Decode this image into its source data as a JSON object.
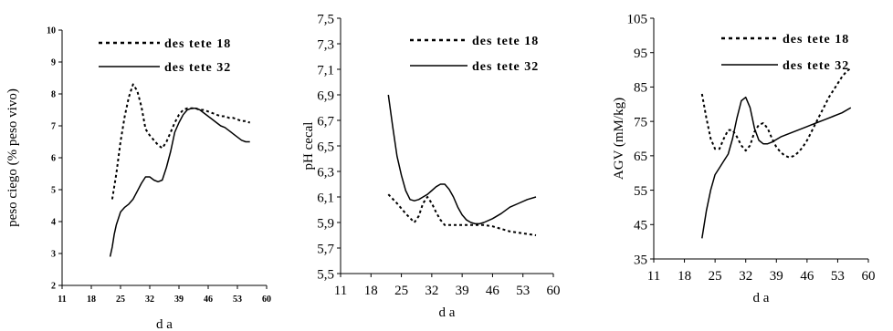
{
  "chart_data": [
    {
      "type": "line",
      "ylabel": "peso ciego (% peso vivo)",
      "xlabel": "d a",
      "xlim": [
        11,
        60
      ],
      "ylim": [
        2,
        10
      ],
      "xticks": [
        "11",
        "18",
        "25",
        "32",
        "39",
        "46",
        "53",
        "60"
      ],
      "yticks": [
        "2",
        "3",
        "4",
        "5",
        "6",
        "7",
        "8",
        "9",
        "10"
      ],
      "legend_position": "top-left",
      "series": [
        {
          "name": "des tete 18",
          "style": "dotted",
          "x": [
            23,
            24,
            25,
            26,
            27,
            28,
            29,
            30,
            31,
            32,
            33,
            34,
            35,
            36,
            37,
            38,
            39,
            40,
            41,
            42,
            43,
            44,
            45,
            46,
            47,
            48,
            49,
            50,
            51,
            52,
            53,
            54,
            55,
            56
          ],
          "y": [
            4.7,
            5.5,
            6.5,
            7.3,
            7.9,
            8.3,
            8.1,
            7.6,
            6.9,
            6.7,
            6.55,
            6.4,
            6.3,
            6.5,
            6.8,
            7.1,
            7.35,
            7.5,
            7.55,
            7.55,
            7.55,
            7.5,
            7.5,
            7.45,
            7.4,
            7.35,
            7.3,
            7.3,
            7.25,
            7.25,
            7.2,
            7.15,
            7.15,
            7.1
          ]
        },
        {
          "name": "des tete 32",
          "style": "solid",
          "x": [
            22.5,
            23,
            23.5,
            24,
            25,
            26,
            27,
            28,
            29,
            30,
            31,
            32,
            33,
            34,
            35,
            36,
            37,
            38,
            39,
            40,
            41,
            42,
            43,
            44,
            45,
            46,
            47,
            48,
            49,
            50,
            51,
            52,
            53,
            54,
            55,
            56
          ],
          "y": [
            2.9,
            3.2,
            3.6,
            3.9,
            4.3,
            4.45,
            4.55,
            4.7,
            4.95,
            5.2,
            5.4,
            5.4,
            5.3,
            5.25,
            5.3,
            5.7,
            6.2,
            6.8,
            7.1,
            7.35,
            7.5,
            7.55,
            7.55,
            7.5,
            7.4,
            7.3,
            7.2,
            7.1,
            7.0,
            6.95,
            6.85,
            6.75,
            6.65,
            6.55,
            6.5,
            6.5
          ]
        }
      ]
    },
    {
      "type": "line",
      "ylabel": "pH cecal",
      "xlabel": "d a",
      "xlim": [
        11,
        60
      ],
      "ylim": [
        5.5,
        7.5
      ],
      "xticks": [
        "11",
        "18",
        "25",
        "32",
        "39",
        "46",
        "53",
        "60"
      ],
      "yticks": [
        "5,5",
        "5,7",
        "5,9",
        "6,1",
        "6,3",
        "6,5",
        "6,7",
        "6,9",
        "7,1",
        "7,3",
        "7,5"
      ],
      "legend_position": "top-left",
      "series": [
        {
          "name": "des tete 18",
          "style": "dotted",
          "x": [
            22,
            24,
            26,
            28,
            29,
            30,
            31,
            32,
            33,
            34,
            35,
            36,
            38,
            40,
            42,
            44,
            46,
            48,
            50,
            52,
            54,
            56
          ],
          "y": [
            6.12,
            6.05,
            5.97,
            5.9,
            5.95,
            6.05,
            6.1,
            6.05,
            5.98,
            5.92,
            5.88,
            5.88,
            5.88,
            5.88,
            5.88,
            5.88,
            5.87,
            5.85,
            5.83,
            5.82,
            5.81,
            5.8
          ]
        },
        {
          "name": "des tete 32",
          "style": "solid",
          "x": [
            22,
            23,
            24,
            25,
            26,
            27,
            28,
            29,
            30,
            31,
            32,
            33,
            34,
            35,
            36,
            37,
            38,
            39,
            40,
            41,
            42,
            43,
            44,
            46,
            48,
            50,
            52,
            54,
            56
          ],
          "y": [
            6.9,
            6.65,
            6.42,
            6.27,
            6.15,
            6.08,
            6.07,
            6.08,
            6.1,
            6.12,
            6.15,
            6.18,
            6.2,
            6.2,
            6.16,
            6.1,
            6.02,
            5.96,
            5.92,
            5.9,
            5.89,
            5.89,
            5.9,
            5.93,
            5.97,
            6.02,
            6.05,
            6.08,
            6.1
          ]
        }
      ]
    },
    {
      "type": "line",
      "ylabel": "AGV (mM/kg)",
      "xlabel": "d a",
      "xlim": [
        11,
        60
      ],
      "ylim": [
        35,
        105
      ],
      "xticks": [
        "11",
        "18",
        "25",
        "32",
        "39",
        "46",
        "53",
        "60"
      ],
      "yticks": [
        "35",
        "45",
        "55",
        "65",
        "75",
        "85",
        "95",
        "105"
      ],
      "legend_position": "top-left",
      "series": [
        {
          "name": "des tete 18",
          "style": "dotted",
          "x": [
            22,
            23,
            24,
            25,
            26,
            27,
            28,
            29,
            30,
            31,
            32,
            33,
            34,
            35,
            36,
            37,
            38,
            39,
            40,
            41,
            42,
            43,
            44,
            45,
            46,
            47,
            48,
            49,
            50,
            51,
            52,
            53,
            54,
            55,
            56
          ],
          "y": [
            83,
            76,
            70,
            67,
            67,
            70,
            72.5,
            72.5,
            70.5,
            68,
            66.5,
            68,
            72,
            74,
            74.5,
            73,
            70,
            67.5,
            66,
            65,
            64.5,
            65,
            66,
            67.5,
            69.5,
            72,
            74.5,
            77,
            79.5,
            82,
            84,
            86,
            88,
            89.5,
            90.5
          ]
        },
        {
          "name": "des tete 32",
          "style": "solid",
          "x": [
            22,
            23,
            24,
            25,
            26,
            27,
            28,
            29,
            30,
            31,
            32,
            33,
            34,
            35,
            36,
            37,
            38,
            40,
            42,
            44,
            46,
            48,
            50,
            52,
            54,
            56
          ],
          "y": [
            41,
            49,
            55,
            59.5,
            61.5,
            63.5,
            65.5,
            70,
            76,
            81,
            82,
            79,
            73,
            69.5,
            68.5,
            68.5,
            69,
            70.5,
            71.5,
            72.5,
            73.5,
            74.5,
            75.5,
            76.5,
            77.5,
            79
          ]
        }
      ]
    }
  ]
}
